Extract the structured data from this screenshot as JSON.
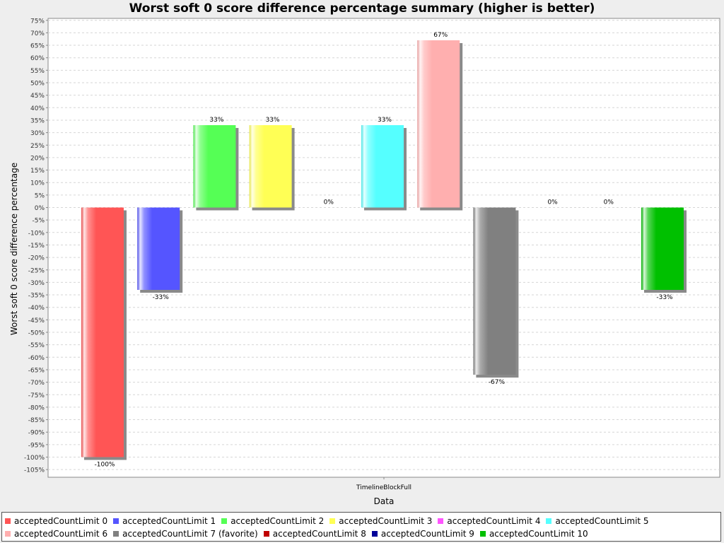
{
  "chart_data": {
    "type": "bar",
    "title": "Worst soft 0 score difference percentage summary (higher is better)",
    "xlabel": "Data",
    "ylabel": "Worst soft 0 score difference percentage",
    "categories": [
      "TimelineBlockFull"
    ],
    "ylim": [
      -107,
      75
    ],
    "yticks": [
      "75%",
      "70%",
      "65%",
      "60%",
      "55%",
      "50%",
      "45%",
      "40%",
      "35%",
      "30%",
      "25%",
      "20%",
      "15%",
      "10%",
      "5%",
      "0%",
      "-5%",
      "-10%",
      "-15%",
      "-20%",
      "-25%",
      "-30%",
      "-35%",
      "-40%",
      "-45%",
      "-50%",
      "-55%",
      "-60%",
      "-65%",
      "-70%",
      "-75%",
      "-80%",
      "-85%",
      "-90%",
      "-95%",
      "-100%",
      "-105%"
    ],
    "ytick_values": [
      75,
      70,
      65,
      60,
      55,
      50,
      45,
      40,
      35,
      30,
      25,
      20,
      15,
      10,
      5,
      0,
      -5,
      -10,
      -15,
      -20,
      -25,
      -30,
      -35,
      -40,
      -45,
      -50,
      -55,
      -60,
      -65,
      -70,
      -75,
      -80,
      -85,
      -90,
      -95,
      -100,
      -105
    ],
    "grid": true,
    "legend_position": "bottom",
    "series": [
      {
        "name": "acceptedCountLimit 0",
        "values": [
          -100
        ],
        "label": "-100%",
        "color": "#ff5555"
      },
      {
        "name": "acceptedCountLimit 1",
        "values": [
          -33
        ],
        "label": "-33%",
        "color": "#5555ff"
      },
      {
        "name": "acceptedCountLimit 2",
        "values": [
          33
        ],
        "label": "33%",
        "color": "#55ff55"
      },
      {
        "name": "acceptedCountLimit 3",
        "values": [
          33
        ],
        "label": "33%",
        "color": "#ffff55"
      },
      {
        "name": "acceptedCountLimit 4",
        "values": [
          0
        ],
        "label": "0%",
        "color": "#ff55ff"
      },
      {
        "name": "acceptedCountLimit 5",
        "values": [
          33
        ],
        "label": "33%",
        "color": "#55ffff"
      },
      {
        "name": "acceptedCountLimit 6",
        "values": [
          67
        ],
        "label": "67%",
        "color": "#ffafaf"
      },
      {
        "name": "acceptedCountLimit 7 (favorite)",
        "values": [
          -67
        ],
        "label": "-67%",
        "color": "#808080"
      },
      {
        "name": "acceptedCountLimit 8",
        "values": [
          0
        ],
        "label": "0%",
        "color": "#c00000"
      },
      {
        "name": "acceptedCountLimit 9",
        "values": [
          0
        ],
        "label": "0%",
        "color": "#000099"
      },
      {
        "name": "acceptedCountLimit 10",
        "values": [
          -33
        ],
        "label": "-33%",
        "color": "#00c000"
      }
    ]
  }
}
